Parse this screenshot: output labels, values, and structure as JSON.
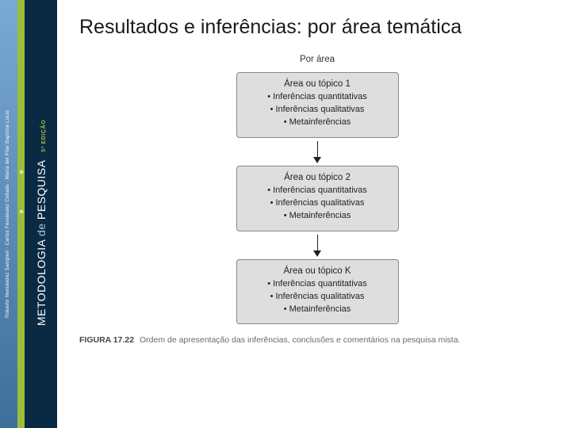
{
  "spine": {
    "authors": "Roberto Hernández Sampieri · Carlos Fernández Collado · María del Pilar Baptista Lucio",
    "title_prefix": "METODOLOGIA",
    "title_mid": "de",
    "title_main": "PESQUISA",
    "edition": "5ª EDIÇÃO"
  },
  "slide": {
    "title": "Resultados e inferências: por área temática"
  },
  "diagram": {
    "header": "Por área",
    "boxes": [
      {
        "heading": "Área ou tópico 1",
        "lines": [
          "• Inferências quantitativas",
          "• Inferências qualitativas",
          "• Metainferências"
        ]
      },
      {
        "heading": "Área ou tópico 2",
        "lines": [
          "• Inferências quantitativas",
          "• Inferências qualitativas",
          "• Metainferências"
        ]
      },
      {
        "heading": "Área ou tópico K",
        "lines": [
          "• Inferências quantitativas",
          "• Inferências qualitativas",
          "• Metainferências"
        ]
      }
    ]
  },
  "caption": {
    "label": "FIGURA 17.22",
    "text": "Ordem de apresentação das inferências, conclusões e comentários na pesquisa mista."
  },
  "colors": {
    "spine_left_top": "#7aa9d4",
    "spine_left_bottom": "#3d6f9a",
    "spine_mid": "#9dbd3a",
    "spine_right": "#0a2a44",
    "box_bg": "#dedede",
    "box_border": "#888888",
    "text": "#1a1a1a"
  }
}
